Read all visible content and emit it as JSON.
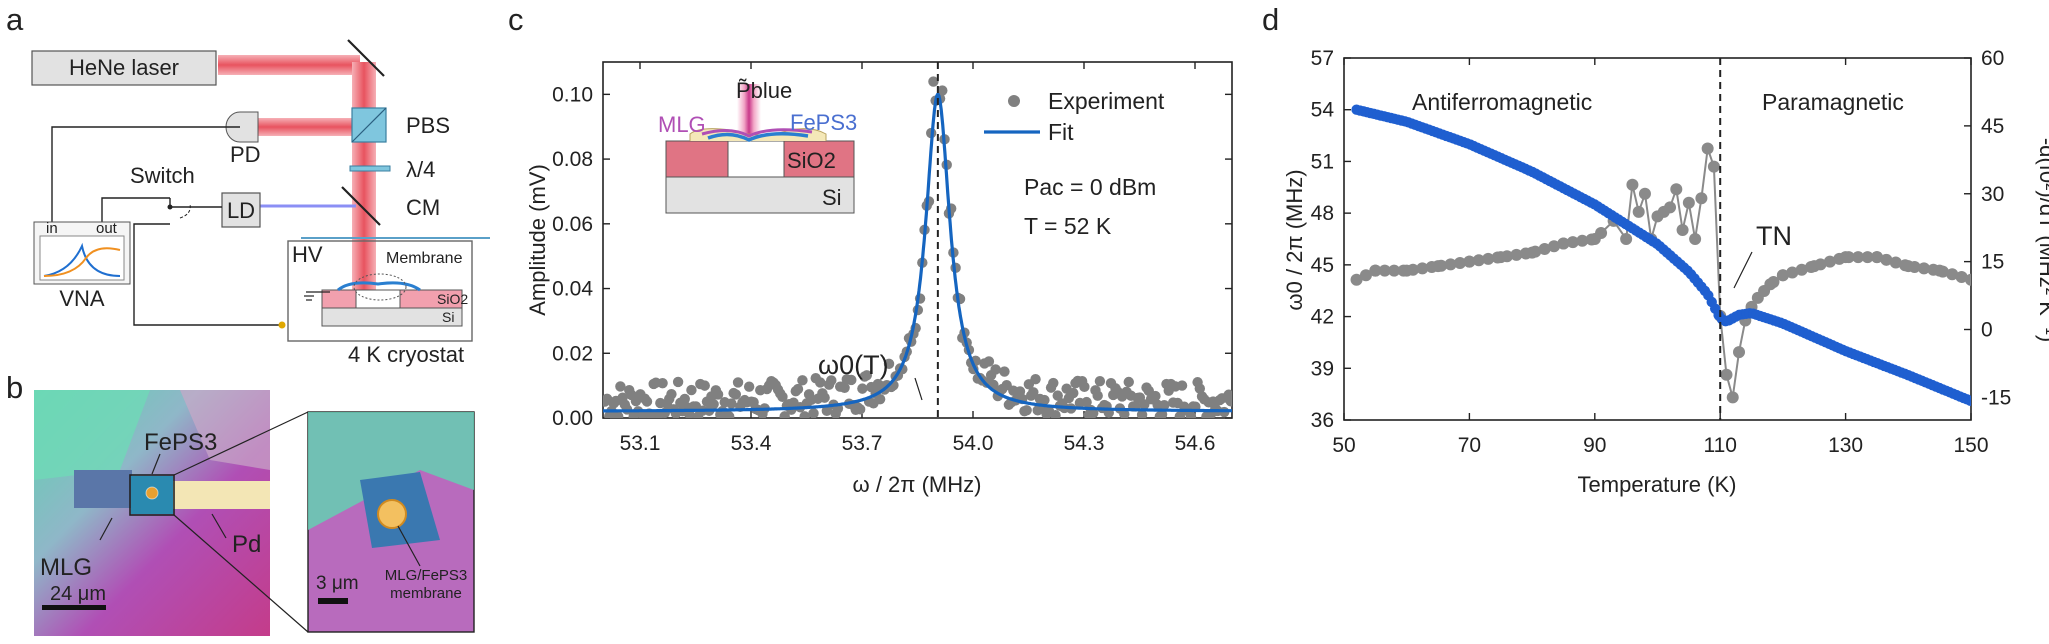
{
  "panels": {
    "a": "a",
    "b": "b",
    "c": "c",
    "d": "d"
  },
  "panel_a": {
    "laser": "HeNe laser",
    "pd": "PD",
    "pbs": "PBS",
    "quarter_wave": "λ/4",
    "switch": "Switch",
    "ld": "LD",
    "cm": "CM",
    "vna": "VNA",
    "vna_in": "in",
    "vna_out": "out",
    "hv": "HV",
    "membrane": "Membrane",
    "sio2": "SiO2",
    "si": "Si",
    "cryostat": "4 K cryostat",
    "colors": {
      "laser": "#e8535f",
      "ld_beam": "#8b8ff5",
      "pbs": "#7fc6de",
      "substrate": "#e5e5e5"
    }
  },
  "panel_b": {
    "feps3": "FePS3",
    "mlg": "MLG",
    "pd": "Pd",
    "scale_main": "24 μm",
    "scale_inset": "3 μm",
    "inset_label_line1": "MLG/FePS3",
    "inset_label_line2": "membrane"
  },
  "panel_c": {
    "inset_mlg": "MLG",
    "inset_feps3": "FePS3",
    "inset_sio2": "SiO2",
    "inset_si": "Si",
    "inset_power": "P̃blue",
    "resonance_label": "ω0(T)",
    "param_pac": "Pac = 0 dBm",
    "param_T": "T = 52 K"
  },
  "chart_data": [
    {
      "type": "scatter+line",
      "title": "",
      "xlabel": "ω / 2π (MHz)",
      "ylabel": "Amplitude (mV)",
      "xlim": [
        53.0,
        54.7
      ],
      "ylim": [
        0.0,
        0.11
      ],
      "xticks": [
        "53.1",
        "53.4",
        "53.7",
        "54.0",
        "54.3",
        "54.6"
      ],
      "xtick_values": [
        53.1,
        53.4,
        53.7,
        54.0,
        54.3,
        54.6
      ],
      "yticks": [
        "0.00",
        "0.02",
        "0.04",
        "0.06",
        "0.08",
        "0.10"
      ],
      "ytick_values": [
        0.0,
        0.02,
        0.04,
        0.06,
        0.08,
        0.1
      ],
      "legend": [
        {
          "name": "Experiment",
          "style": "marker",
          "color": "#808080"
        },
        {
          "name": "Fit",
          "style": "line",
          "color": "#1565c0"
        }
      ],
      "legend_position": "top-right",
      "resonance": {
        "f0": 53.905,
        "peak_mV": 0.098,
        "fwhm_MHz": 0.08,
        "marker": "dashed vertical line"
      },
      "experiment_note": "grey points scatter around the fit; baseline noise about 0.000-0.010 mV",
      "sample_points": [
        {
          "x": 53.02,
          "y": 0.008
        },
        {
          "x": 53.2,
          "y": 0.006
        },
        {
          "x": 53.4,
          "y": 0.007
        },
        {
          "x": 53.6,
          "y": 0.009
        },
        {
          "x": 53.75,
          "y": 0.014
        },
        {
          "x": 53.82,
          "y": 0.022
        },
        {
          "x": 53.86,
          "y": 0.033
        },
        {
          "x": 53.88,
          "y": 0.05
        },
        {
          "x": 53.895,
          "y": 0.078
        },
        {
          "x": 53.905,
          "y": 0.098
        },
        {
          "x": 53.915,
          "y": 0.086
        },
        {
          "x": 53.93,
          "y": 0.06
        },
        {
          "x": 53.95,
          "y": 0.04
        },
        {
          "x": 54.0,
          "y": 0.025
        },
        {
          "x": 54.1,
          "y": 0.013
        },
        {
          "x": 54.3,
          "y": 0.008
        },
        {
          "x": 54.5,
          "y": 0.006
        },
        {
          "x": 54.68,
          "y": 0.005
        }
      ]
    },
    {
      "type": "scatter",
      "title": "",
      "xlabel": "Temperature (K)",
      "ylabel_left": "ω0 / 2π (MHz)",
      "ylabel_right": "-d(f0²)/dT (MHz² K⁻¹)",
      "xlim": [
        50,
        150
      ],
      "ylim_left": [
        36,
        57
      ],
      "ylim_right": [
        -20,
        60
      ],
      "xticks": [
        "50",
        "70",
        "90",
        "110",
        "130",
        "150"
      ],
      "xtick_values": [
        50,
        70,
        90,
        110,
        130,
        150
      ],
      "yticks_left": [
        "36",
        "39",
        "42",
        "45",
        "48",
        "51",
        "54",
        "57"
      ],
      "ytick_values_left": [
        36,
        39,
        42,
        45,
        48,
        51,
        54,
        57
      ],
      "yticks_right": [
        "-15",
        "0",
        "15",
        "30",
        "45",
        "60"
      ],
      "ytick_values_right": [
        -15,
        0,
        15,
        30,
        45,
        60
      ],
      "regions": [
        "Antiferromagnetic",
        "Paramagnetic"
      ],
      "transition_label": "TN",
      "transition_T": 110,
      "series": [
        {
          "name": "ω0 / 2π",
          "axis": "left",
          "color": "#1f5fd0",
          "x": [
            52,
            60,
            70,
            80,
            90,
            100,
            105,
            108,
            110,
            111,
            113,
            115,
            120,
            130,
            140,
            150
          ],
          "values": [
            54.0,
            53.3,
            52.0,
            50.4,
            48.5,
            46.2,
            44.6,
            43.3,
            41.9,
            41.7,
            42.1,
            42.2,
            41.6,
            40.0,
            38.6,
            37.1
          ]
        },
        {
          "name": "-d(f0²)/dT",
          "axis": "right",
          "color": "#8a8a8a",
          "connected": true,
          "x": [
            52,
            55,
            60,
            65,
            70,
            75,
            80,
            85,
            90,
            93,
            95,
            96,
            97,
            98,
            99,
            100,
            101,
            102,
            103,
            104,
            105,
            106,
            107,
            108,
            109,
            110,
            111,
            112,
            113,
            114,
            115,
            116,
            118,
            120,
            125,
            130,
            135,
            140,
            145,
            150
          ],
          "values": [
            11,
            13,
            13,
            14,
            15,
            16,
            17,
            19,
            20,
            24,
            20,
            32,
            26,
            30,
            20,
            25,
            26,
            27,
            31,
            22,
            28,
            20,
            29,
            40,
            36,
            3,
            -10,
            -15,
            -5,
            2,
            5,
            7,
            10,
            12,
            14,
            16,
            16,
            14,
            13,
            11
          ]
        }
      ]
    }
  ]
}
